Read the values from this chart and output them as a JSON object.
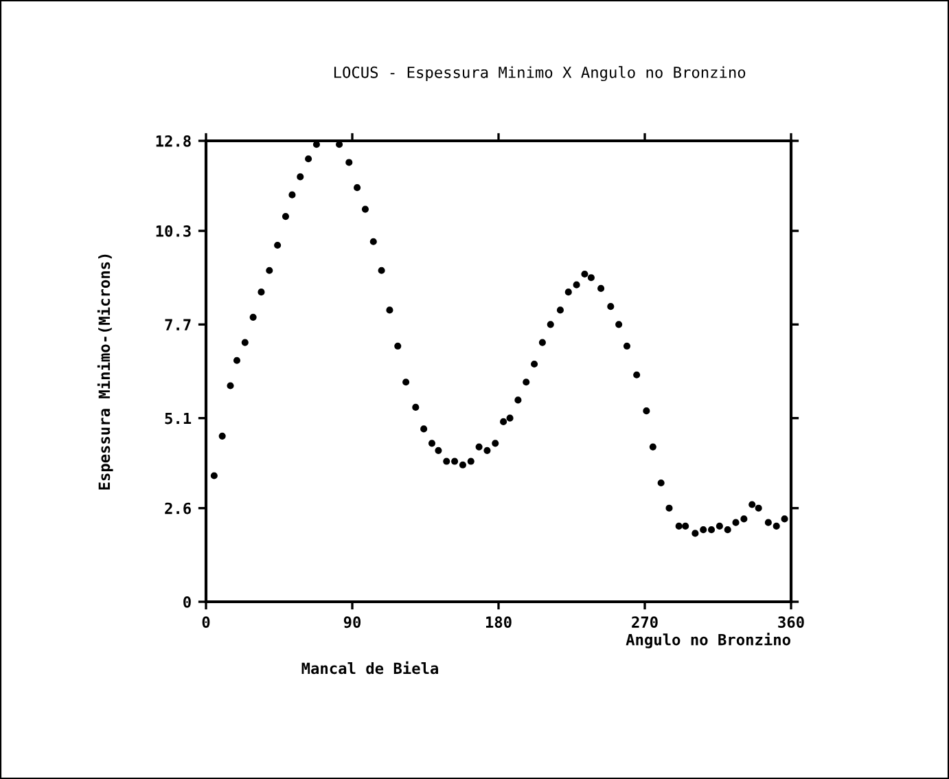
{
  "chart_data": {
    "type": "scatter",
    "title": "LOCUS - Espessura Minimo X Angulo no Bronzino",
    "xlabel": "Angulo no Bronzino",
    "ylabel": "Espessura Minimo-(Microns)",
    "annotations": [
      "Mancal de Biela"
    ],
    "xlim": [
      0,
      360
    ],
    "ylim": [
      0,
      12.8
    ],
    "xticks": [
      0,
      90,
      180,
      270,
      360
    ],
    "yticks": [
      0,
      2.6,
      5.1,
      7.7,
      10.3,
      12.8
    ],
    "marker": "circle",
    "series": [
      {
        "color": "#000000",
        "x": [
          5,
          10,
          15,
          19,
          24,
          29,
          34,
          39,
          44,
          49,
          53,
          58,
          63,
          68,
          82,
          88,
          93,
          98,
          103,
          108,
          113,
          118,
          123,
          129,
          134,
          139,
          143,
          148,
          153,
          158,
          163,
          168,
          173,
          178,
          183,
          187,
          192,
          197,
          202,
          207,
          212,
          218,
          223,
          228,
          233,
          237,
          243,
          249,
          254,
          259,
          265,
          271,
          275,
          280,
          285,
          291,
          295,
          301,
          306,
          311,
          316,
          321,
          326,
          331,
          336,
          340,
          346,
          351,
          356
        ],
        "values": [
          3.5,
          4.6,
          6.0,
          6.7,
          7.2,
          7.9,
          8.6,
          9.2,
          9.9,
          10.7,
          11.3,
          11.8,
          12.3,
          12.7,
          12.7,
          12.2,
          11.5,
          10.9,
          10.0,
          9.2,
          8.1,
          7.1,
          6.1,
          5.4,
          4.8,
          4.4,
          4.2,
          3.9,
          3.9,
          3.8,
          3.9,
          4.3,
          4.2,
          4.4,
          5.0,
          5.1,
          5.6,
          6.1,
          6.6,
          7.2,
          7.7,
          8.1,
          8.6,
          8.8,
          9.1,
          9.0,
          8.7,
          8.2,
          7.7,
          7.1,
          6.3,
          5.3,
          4.3,
          3.3,
          2.6,
          2.1,
          2.1,
          1.9,
          2.0,
          2.0,
          2.1,
          2.0,
          2.2,
          2.3,
          2.7,
          2.6,
          2.2,
          2.1,
          2.3
        ]
      }
    ]
  }
}
